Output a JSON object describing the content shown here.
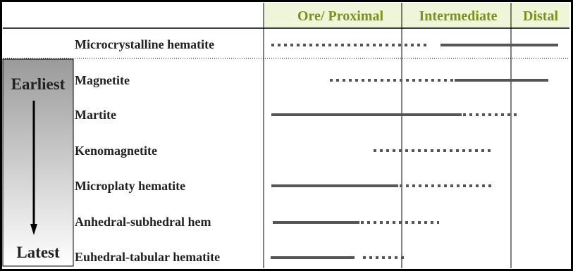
{
  "header": {
    "zones": [
      "Ore/ Proximal",
      "Intermediate",
      "Distal"
    ]
  },
  "minerals": [
    "Microcrystalline hematite",
    "Magnetite",
    "Martite",
    "Kenomagnetite",
    "Microplaty hematite",
    "Anhedral-subhedral hem",
    "Euhedral-tabular hematite"
  ],
  "sequence": {
    "start": "Earliest",
    "end": "Latest"
  }
}
